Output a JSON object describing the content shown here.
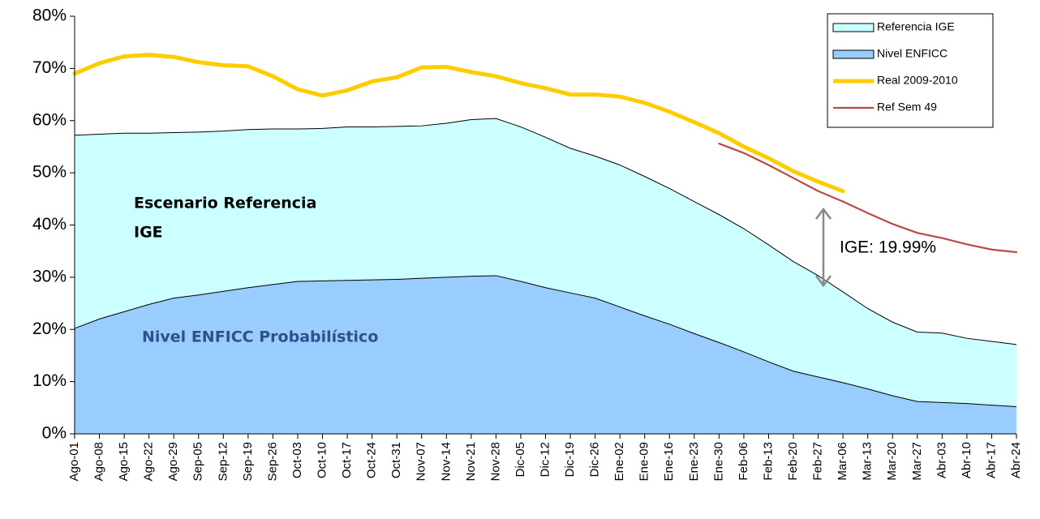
{
  "chart_data": {
    "type": "area",
    "categories": [
      "Ago-01",
      "Ago-08",
      "Ago-15",
      "Ago-22",
      "Ago-29",
      "Sep-05",
      "Sep-12",
      "Sep-19",
      "Sep-26",
      "Oct-03",
      "Oct-10",
      "Oct-17",
      "Oct-24",
      "Oct-31",
      "Nov-07",
      "Nov-14",
      "Nov-21",
      "Nov-28",
      "Dic-05",
      "Dic-12",
      "Dic-19",
      "Dic-26",
      "Ene-02",
      "Ene-09",
      "Ene-16",
      "Ene-23",
      "Ene-30",
      "Feb-06",
      "Feb-13",
      "Feb-20",
      "Feb-27",
      "Mar-06",
      "Mar-13",
      "Mar-20",
      "Mar-27",
      "Abr-03",
      "Abr-10",
      "Abr-17",
      "Abr-24"
    ],
    "series": [
      {
        "name": "Referencia IGE",
        "type": "area",
        "color": "#ccffff",
        "values": [
          57.2,
          57.4,
          57.6,
          57.6,
          57.7,
          57.8,
          58.0,
          58.3,
          58.4,
          58.4,
          58.5,
          58.8,
          58.8,
          58.9,
          59.0,
          59.5,
          60.2,
          60.4,
          58.8,
          56.8,
          54.7,
          53.2,
          51.5,
          49.3,
          47.0,
          44.5,
          42.0,
          39.3,
          36.2,
          33.0,
          30.3,
          27.2,
          24.0,
          21.4,
          19.5,
          19.3,
          18.3,
          17.7,
          17.1
        ]
      },
      {
        "name": "Nivel ENFICC",
        "type": "area",
        "color": "#99ccff",
        "values": [
          20.2,
          22.0,
          23.4,
          24.8,
          26.0,
          26.6,
          27.3,
          28.0,
          28.6,
          29.2,
          29.3,
          29.4,
          29.5,
          29.6,
          29.8,
          30.0,
          30.2,
          30.3,
          29.2,
          28.0,
          27.0,
          26.0,
          24.3,
          22.6,
          21.0,
          19.2,
          17.5,
          15.7,
          13.8,
          12.0,
          10.9,
          9.8,
          8.6,
          7.3,
          6.2,
          6.0,
          5.8,
          5.5,
          5.2
        ]
      },
      {
        "name": "Real 2009-2010",
        "type": "line",
        "color": "#ffcc00",
        "values": [
          69.0,
          71.0,
          72.3,
          72.6,
          72.2,
          71.2,
          70.6,
          70.4,
          68.5,
          66.0,
          64.8,
          65.8,
          67.5,
          68.3,
          70.2,
          70.3,
          69.3,
          68.5,
          67.2,
          66.2,
          65.0,
          65.0,
          64.6,
          63.4,
          61.7,
          59.7,
          57.6,
          55.0,
          52.8,
          50.3,
          48.3,
          46.5,
          null,
          null,
          null,
          null,
          null,
          null,
          null
        ]
      },
      {
        "name": "Ref Sem 49",
        "type": "line",
        "color": "#b94a48",
        "values": [
          null,
          null,
          null,
          null,
          null,
          null,
          null,
          null,
          null,
          null,
          null,
          null,
          null,
          null,
          null,
          null,
          null,
          null,
          null,
          null,
          null,
          null,
          null,
          null,
          null,
          null,
          55.6,
          53.8,
          51.5,
          49.0,
          46.5,
          44.5,
          42.3,
          40.2,
          38.5,
          37.5,
          36.3,
          35.3,
          34.8
        ]
      }
    ],
    "ylim": [
      0,
      80
    ],
    "yticks": [
      {
        "value": 0,
        "label": "0%"
      },
      {
        "value": 10,
        "label": "10%"
      },
      {
        "value": 20,
        "label": "20%"
      },
      {
        "value": 30,
        "label": "30%"
      },
      {
        "value": 40,
        "label": "40%"
      },
      {
        "value": 50,
        "label": "50%"
      },
      {
        "value": 60,
        "label": "60%"
      },
      {
        "value": 70,
        "label": "70%"
      },
      {
        "value": 80,
        "label": "80%"
      }
    ],
    "legend": "top-right",
    "annotations": [
      "Escenario Referencia",
      "IGE",
      "Nivel ENFICC Probabilístico",
      "IGE: 19.99%"
    ]
  }
}
